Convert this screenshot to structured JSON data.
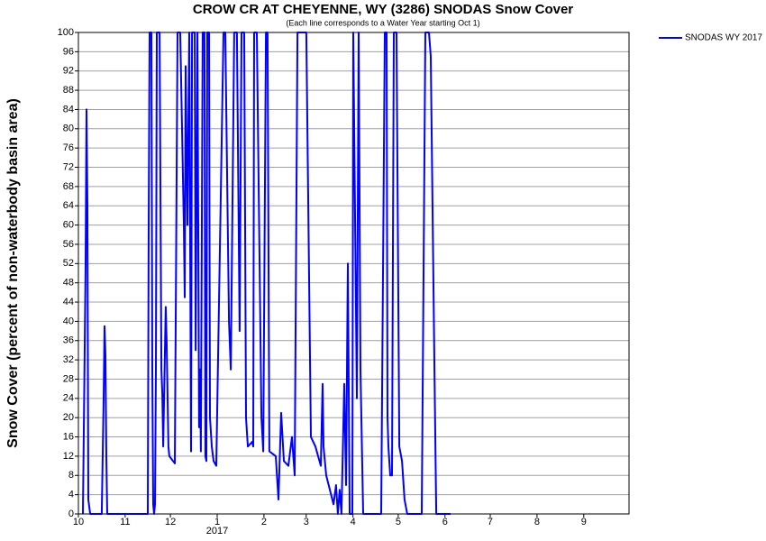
{
  "chart_data": {
    "type": "line",
    "title": "CROW CR AT CHEYENNE, WY (3286) SNODAS Snow Cover",
    "subtitle": "(Each line corresponds to a Water Year starting Oct 1)",
    "y_label": "Snow Cover (percent of non-waterbody basin area)",
    "annotation": "2017",
    "x": [
      3,
      4.8,
      5.4,
      6,
      6.6,
      7.8,
      15.5,
      16.7,
      17.3,
      17.9,
      18.5,
      19.1,
      46,
      46.6,
      47.2,
      48.4,
      49,
      49.6,
      50.2,
      50.8,
      51.4,
      52,
      53.8,
      55,
      55.6,
      56.2,
      57.9,
      58.5,
      59.7,
      60.3,
      62.7,
      63.9,
      65.7,
      67.5,
      69.9,
      70.5,
      71.1,
      72.3,
      73.5,
      74.7,
      75.3,
      77.1,
      77.7,
      78.9,
      80,
      80.6,
      81.2,
      82.4,
      83.6,
      84.2,
      84.8,
      85.4,
      86.6,
      87.2,
      88.4,
      89.6,
      91.4,
      96.2,
      97.4,
      99.8,
      101,
      103.3,
      105.1,
      106.9,
      108.1,
      109.9,
      111.1,
      112.3,
      115.3,
      115.9,
      116.5,
      118.3,
      121.3,
      122.5,
      124.3,
      125.4,
      126.6,
      130.8,
      132.6,
      134.4,
      136.2,
      139.2,
      141.6,
      143.4,
      145.2,
      146.4,
      151.1,
      154.1,
      157.1,
      160.7,
      161.9,
      162.5,
      164.3,
      169.1,
      170.8,
      172,
      173.2,
      174.4,
      176.2,
      177.4,
      178.6,
      179.8,
      181.6,
      182.2,
      184.6,
      185.8,
      187,
      188.8,
      200.7,
      203.1,
      204.3,
      204.9,
      205.5,
      206.7,
      207.9,
      209.1,
      210.9,
      212.7,
      214.5,
      216.2,
      218,
      227.6,
      230,
      232.4,
      233.6,
      236,
      237.2,
      246.7
    ],
    "series": [
      {
        "name": "SNODAS WY 2017",
        "color": "#0000ff",
        "values": [
          0,
          52,
          84,
          64,
          3,
          0,
          0,
          24,
          39,
          33,
          12,
          0,
          0,
          60,
          100,
          100,
          30,
          2,
          0,
          2,
          30,
          100,
          100,
          30,
          25,
          14,
          43,
          36,
          14,
          12,
          11,
          10.5,
          100,
          100,
          60,
          45,
          93,
          60,
          100,
          13,
          100,
          100,
          34,
          100,
          18,
          30,
          13,
          100,
          100,
          12,
          11,
          100,
          100,
          20,
          14,
          11,
          10,
          100,
          100,
          40,
          30,
          100,
          100,
          38,
          100,
          100,
          20,
          14,
          15,
          14,
          100,
          100,
          20,
          13,
          100,
          100,
          13,
          12,
          3,
          21,
          11,
          10,
          16,
          8,
          100,
          100,
          100,
          16,
          14,
          10,
          27,
          14,
          8,
          2,
          6,
          0,
          5,
          0,
          27,
          6,
          52,
          0,
          0,
          100,
          24,
          100,
          30,
          0,
          0,
          100,
          100,
          20,
          14,
          8,
          8,
          100,
          100,
          14,
          11,
          3,
          0,
          0,
          100,
          100,
          95,
          30,
          0,
          0
        ]
      }
    ],
    "xlim": [
      0,
      365
    ],
    "xticks": [
      {
        "value": 0,
        "label": "10"
      },
      {
        "value": 31,
        "label": "11"
      },
      {
        "value": 61,
        "label": "12"
      },
      {
        "value": 92,
        "label": "1"
      },
      {
        "value": 123,
        "label": "2"
      },
      {
        "value": 151,
        "label": "3"
      },
      {
        "value": 182,
        "label": "4"
      },
      {
        "value": 212,
        "label": "5"
      },
      {
        "value": 243,
        "label": "6"
      },
      {
        "value": 273,
        "label": "7"
      },
      {
        "value": 304,
        "label": "8"
      },
      {
        "value": 335,
        "label": "9"
      }
    ],
    "ylim": [
      0,
      100
    ],
    "yticks": [
      0,
      4,
      8,
      12,
      16,
      20,
      24,
      28,
      32,
      36,
      40,
      44,
      48,
      52,
      56,
      60,
      64,
      68,
      72,
      76,
      80,
      84,
      88,
      92,
      96,
      100
    ],
    "grid": true,
    "legend": "top-right"
  }
}
